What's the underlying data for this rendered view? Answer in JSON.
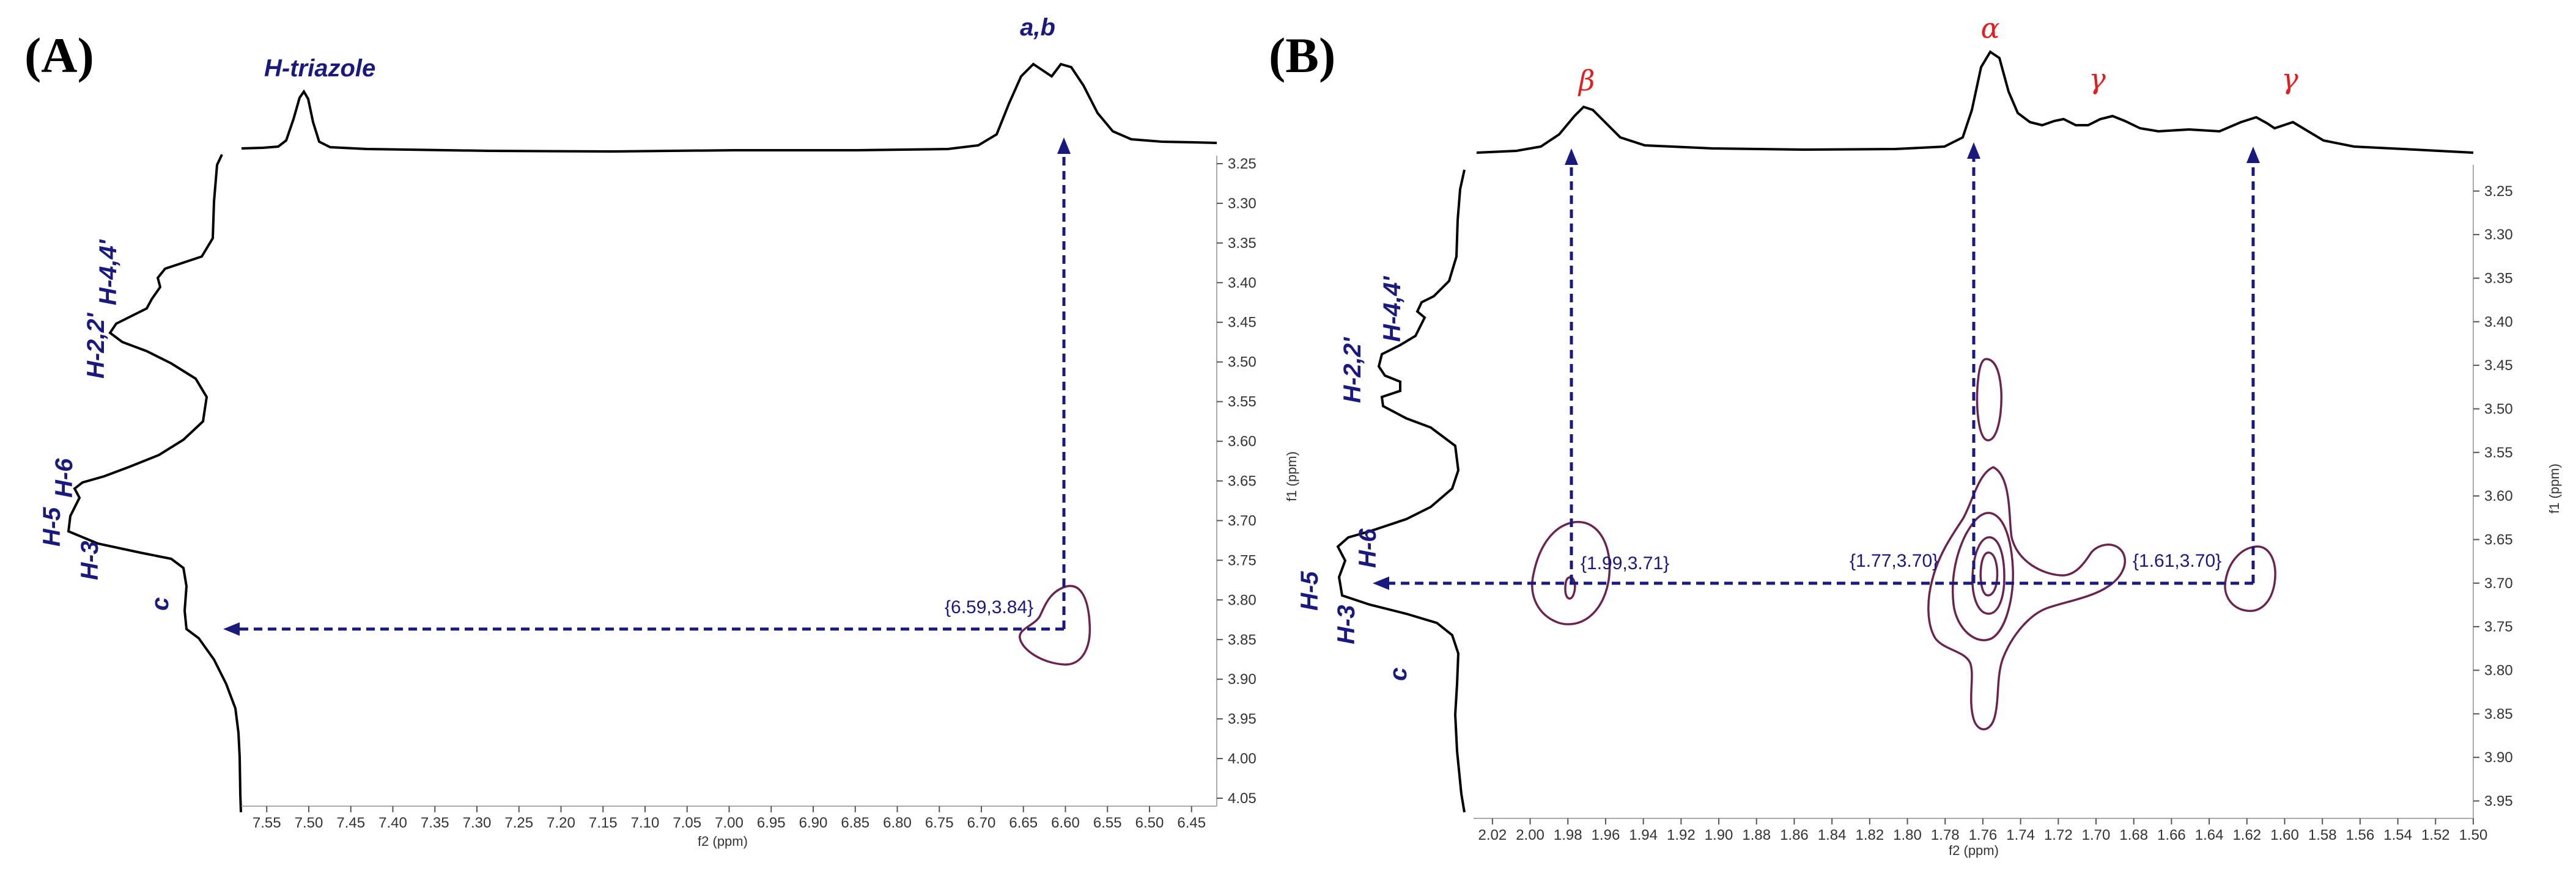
{
  "colors": {
    "label_blue": "#1a1a7e",
    "greek_red": "#e02020",
    "contour_purple": "#6b2450",
    "spectrum_black": "#000000"
  },
  "chart_data": [
    {
      "type": "scatter",
      "subtype": "2D NMR correlation spectrum",
      "panel_label": "(A)",
      "xlabel": "f2 (ppm)",
      "ylabel": "f1 (ppm)",
      "xlim": [
        7.58,
        6.42
      ],
      "ylim": [
        3.24,
        4.06
      ],
      "x_axis_reversed": true,
      "y_axis_reversed": true,
      "x_ticks": [
        "7.55",
        "7.50",
        "7.45",
        "7.40",
        "7.35",
        "7.30",
        "7.25",
        "7.20",
        "7.15",
        "7.10",
        "7.05",
        "7.00",
        "6.95",
        "6.90",
        "6.85",
        "6.80",
        "6.75",
        "6.70",
        "6.65",
        "6.60",
        "6.55",
        "6.50",
        "6.45"
      ],
      "y_ticks": [
        "3.25",
        "3.30",
        "3.35",
        "3.40",
        "3.45",
        "3.50",
        "3.55",
        "3.60",
        "3.65",
        "3.70",
        "3.75",
        "3.80",
        "3.85",
        "3.90",
        "3.95",
        "4.00",
        "4.05"
      ],
      "top_trace_labels": [
        {
          "text": "H-triazole",
          "ppm": 7.52
        },
        {
          "text": "a,b",
          "ppm": 6.61
        }
      ],
      "left_trace_labels": [
        {
          "text": "H-4,4'",
          "ppm": 3.37
        },
        {
          "text": "H-2,2'",
          "ppm": 3.46
        },
        {
          "text": "H-6",
          "ppm": 3.63
        },
        {
          "text": "H-5",
          "ppm": 3.68
        },
        {
          "text": "H-3",
          "ppm": 3.73
        },
        {
          "text": "c",
          "ppm": 3.82
        }
      ],
      "cross_peaks": [
        {
          "x": 6.59,
          "y": 3.84,
          "label": "{6.59,3.84}"
        }
      ],
      "grid": false
    },
    {
      "type": "scatter",
      "subtype": "2D NMR correlation spectrum",
      "panel_label": "(B)",
      "xlabel": "f2 (ppm)",
      "ylabel": "f1 (ppm)",
      "xlim": [
        2.03,
        1.5
      ],
      "ylim": [
        3.22,
        3.97
      ],
      "x_axis_reversed": true,
      "y_axis_reversed": true,
      "x_ticks": [
        "2.02",
        "2.00",
        "1.98",
        "1.96",
        "1.94",
        "1.92",
        "1.90",
        "1.88",
        "1.86",
        "1.84",
        "1.82",
        "1.80",
        "1.78",
        "1.76",
        "1.74",
        "1.72",
        "1.70",
        "1.68",
        "1.66",
        "1.64",
        "1.62",
        "1.60",
        "1.58",
        "1.56",
        "1.54",
        "1.52",
        "1.50"
      ],
      "y_ticks": [
        "3.25",
        "3.30",
        "3.35",
        "3.40",
        "3.45",
        "3.50",
        "3.55",
        "3.60",
        "3.65",
        "3.70",
        "3.75",
        "3.80",
        "3.85",
        "3.90",
        "3.95"
      ],
      "top_trace_labels": [
        {
          "text": "β",
          "ppm": 1.985
        },
        {
          "text": "α",
          "ppm": 1.77
        },
        {
          "text": "γ",
          "ppm": 1.7
        },
        {
          "text": "γ",
          "ppm": 1.605
        }
      ],
      "left_trace_labels": [
        {
          "text": "H-4,4'",
          "ppm": 3.39
        },
        {
          "text": "H-2,2'",
          "ppm": 3.45
        },
        {
          "text": "H-6",
          "ppm": 3.67
        },
        {
          "text": "H-5",
          "ppm": 3.7
        },
        {
          "text": "H-3",
          "ppm": 3.74
        },
        {
          "text": "c",
          "ppm": 3.8
        }
      ],
      "cross_peaks": [
        {
          "x": 1.99,
          "y": 3.71,
          "label": "{1.99,3.71}"
        },
        {
          "x": 1.77,
          "y": 3.7,
          "label": "{1.77,3.70}"
        },
        {
          "x": 1.61,
          "y": 3.7,
          "label": "{1.61,3.70}"
        }
      ],
      "grid": false
    }
  ]
}
